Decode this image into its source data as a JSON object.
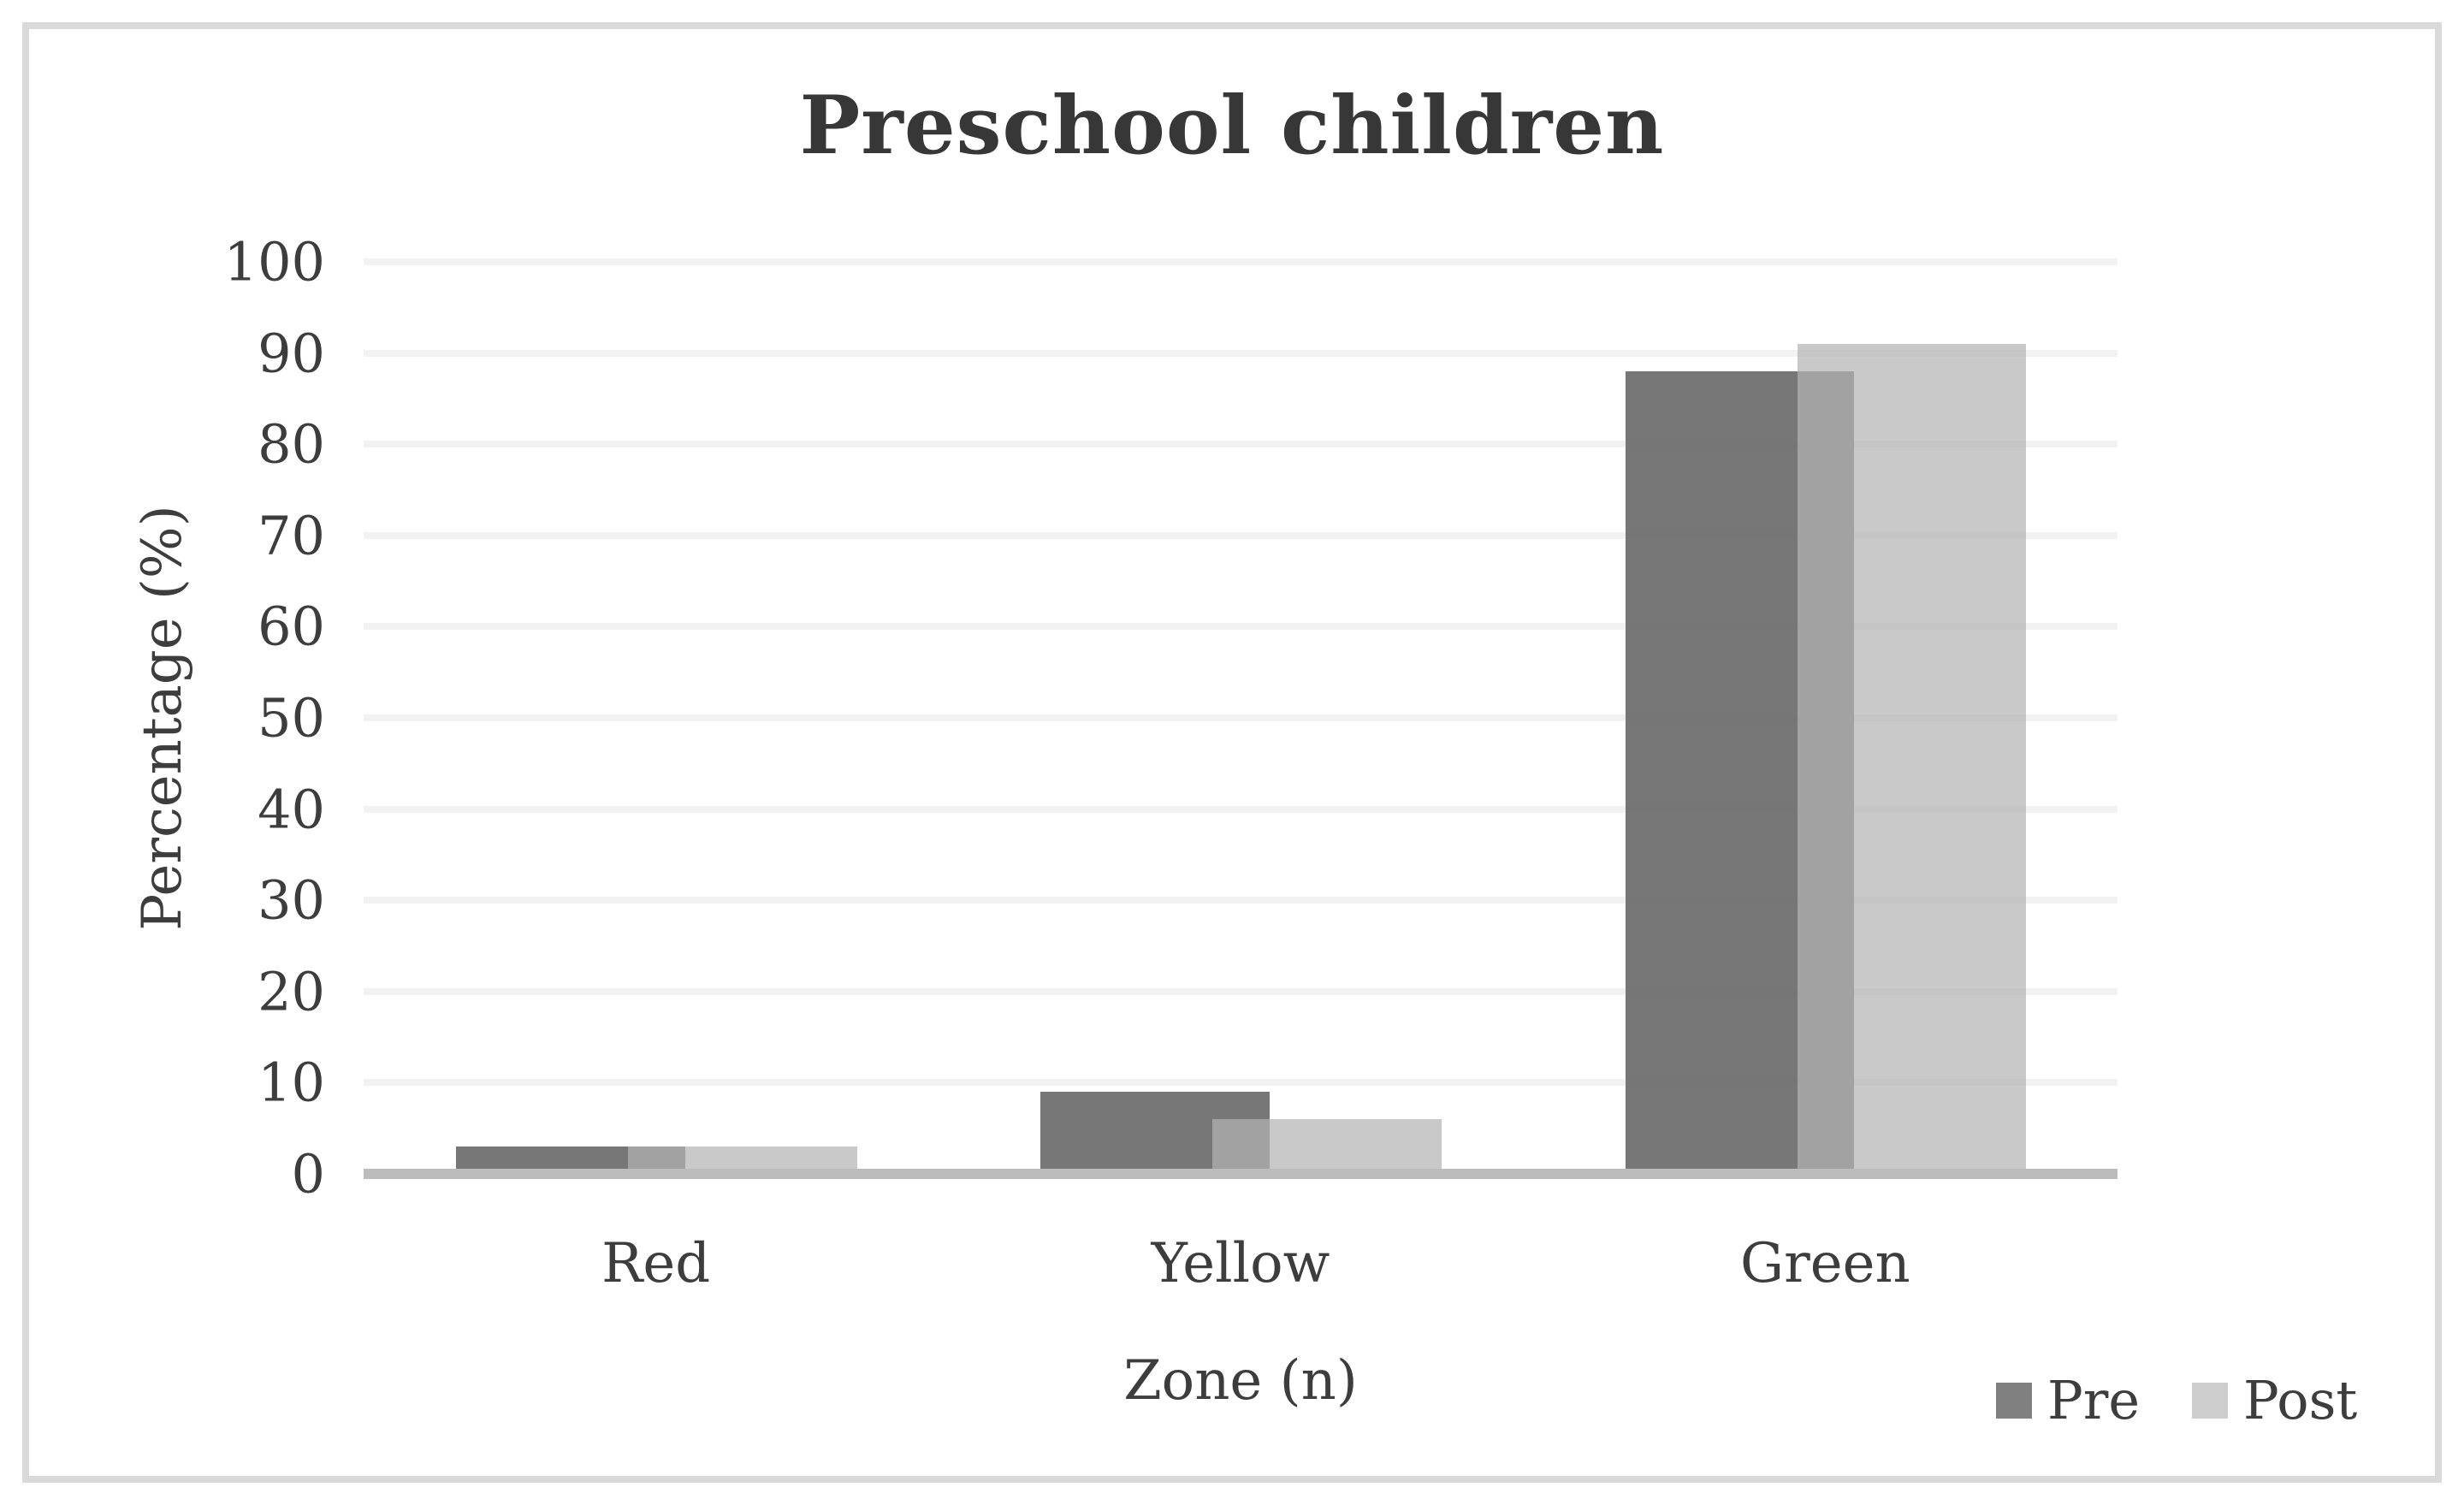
{
  "title": "Preschool children",
  "chart_data": {
    "type": "bar",
    "categories": [
      "Red",
      "Yellow",
      "Green"
    ],
    "series": [
      {
        "name": "Pre",
        "values": [
          3,
          9,
          88
        ],
        "fill": "rgba(100,100,100,0.88)",
        "legend_color": "#808080"
      },
      {
        "name": "Post",
        "values": [
          3,
          6,
          91
        ],
        "fill": "rgba(180,180,180,0.715)",
        "legend_color": "#cdcdcd"
      }
    ],
    "overlap_color_note": "#a2a2a2 where Post overlaps Pre",
    "xlabel": "Zone (n)",
    "ylabel": "Percentage (%)",
    "ylim": [
      0,
      100
    ],
    "yticks": [
      0,
      10,
      20,
      30,
      40,
      50,
      60,
      70,
      80,
      90,
      100
    ],
    "grid": true,
    "gridline_color": "#f2f2f2",
    "axis_line_color": "#bcbcbc",
    "legend_position": "bottom-right",
    "legend_labels": [
      "Pre",
      "Post"
    ],
    "bar_overlap_fraction": 0.25
  }
}
